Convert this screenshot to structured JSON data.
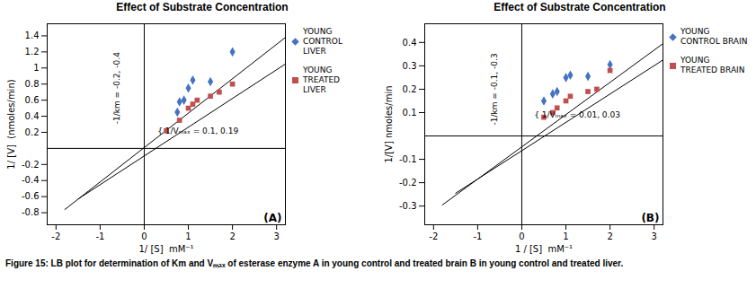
{
  "chart_data": [
    {
      "type": "scatter",
      "title": "Effect of Substrate Concentration",
      "x_label": "1/ [S]  mM⁻¹",
      "y_label": "1/ [V]  (nmoles/min)",
      "xlim": [
        -2.2,
        3.2
      ],
      "ylim": [
        -0.95,
        1.55
      ],
      "xticks": [
        -2,
        -1,
        0,
        1,
        2,
        3
      ],
      "yticks": [
        -0.8,
        -0.6,
        -0.4,
        -0.2,
        0.2,
        0.4,
        0.6,
        0.8,
        1,
        1.2,
        1.4
      ],
      "legend": "right",
      "annotations": [
        {
          "text": "-1/km = -0.2, -0.4",
          "x": -0.62,
          "y": 0.75
        },
        {
          "text": "{ 1/Vₘₐₓ = 0.1, 0.19",
          "x": 0.3,
          "y": 0.215
        },
        {
          "text": "(A)"
        }
      ],
      "series": [
        {
          "type": "line",
          "color": "#000000",
          "x": [
            -1.8,
            3.2
          ],
          "values": [
            -0.76,
            1.38
          ]
        },
        {
          "type": "line",
          "color": "#000000",
          "x": [
            -1.5,
            3.2
          ],
          "values": [
            -0.63,
            1.05
          ]
        },
        {
          "name": "YOUNG\nCONTROL\nLIVER",
          "type": "scatter",
          "marker": "diamond",
          "color": "#4472C4",
          "x": [
            0.75,
            0.8,
            0.9,
            1.0,
            1.1,
            1.5,
            2.0
          ],
          "values": [
            0.45,
            0.58,
            0.6,
            0.75,
            0.85,
            0.83,
            1.2
          ]
        },
        {
          "name": "YOUNG\nTREATED\nLIVER",
          "type": "scatter",
          "marker": "square",
          "color": "#C0504D",
          "x": [
            0.5,
            0.8,
            1.0,
            1.1,
            1.2,
            1.5,
            1.7,
            2.0
          ],
          "values": [
            0.22,
            0.35,
            0.5,
            0.55,
            0.6,
            0.65,
            0.7,
            0.8
          ]
        }
      ]
    },
    {
      "type": "scatter",
      "title": "Effect of Substrate Concentration",
      "x_label": "1 / [S]  mM⁻¹",
      "y_label": "1/[V] nmoles/min",
      "xlim": [
        -2.2,
        3.2
      ],
      "ylim": [
        -0.38,
        0.48
      ],
      "xticks": [
        -2,
        -1,
        0,
        1,
        2,
        3
      ],
      "yticks": [
        -0.3,
        -0.2,
        -0.1,
        0.1,
        0.2,
        0.3,
        0.4
      ],
      "legend": "right",
      "annotations": [
        {
          "text": "-1/km = -0.1, -0.3",
          "x": -0.62,
          "y": 0.2
        },
        {
          "text": "{ 1/Vₘₐₓ = 0.01, 0.03",
          "x": 0.28,
          "y": 0.09
        },
        {
          "text": "(B)"
        }
      ],
      "series": [
        {
          "type": "line",
          "color": "#000000",
          "x": [
            -1.8,
            3.2
          ],
          "values": [
            -0.295,
            0.395
          ]
        },
        {
          "type": "line",
          "color": "#000000",
          "x": [
            -1.5,
            3.2
          ],
          "values": [
            -0.245,
            0.325
          ]
        },
        {
          "name": "YOUNG\nCONTROL BRAIN",
          "type": "scatter",
          "marker": "diamond",
          "color": "#4472C4",
          "x": [
            0.5,
            0.7,
            0.8,
            1.0,
            1.1,
            1.5,
            2.0
          ],
          "values": [
            0.15,
            0.18,
            0.19,
            0.25,
            0.26,
            0.255,
            0.305
          ]
        },
        {
          "name": "YOUNG\nTREATED BRAIN",
          "type": "scatter",
          "marker": "square",
          "color": "#C0504D",
          "x": [
            0.5,
            0.7,
            0.8,
            1.0,
            1.1,
            1.5,
            1.7,
            2.0
          ],
          "values": [
            0.08,
            0.1,
            0.12,
            0.15,
            0.17,
            0.19,
            0.2,
            0.28
          ]
        }
      ]
    }
  ],
  "caption": "Figure 15: LB plot for determination of Km and Vₘₐₓ of esterase enzyme A in young control and treated brain B in young control and treated liver."
}
